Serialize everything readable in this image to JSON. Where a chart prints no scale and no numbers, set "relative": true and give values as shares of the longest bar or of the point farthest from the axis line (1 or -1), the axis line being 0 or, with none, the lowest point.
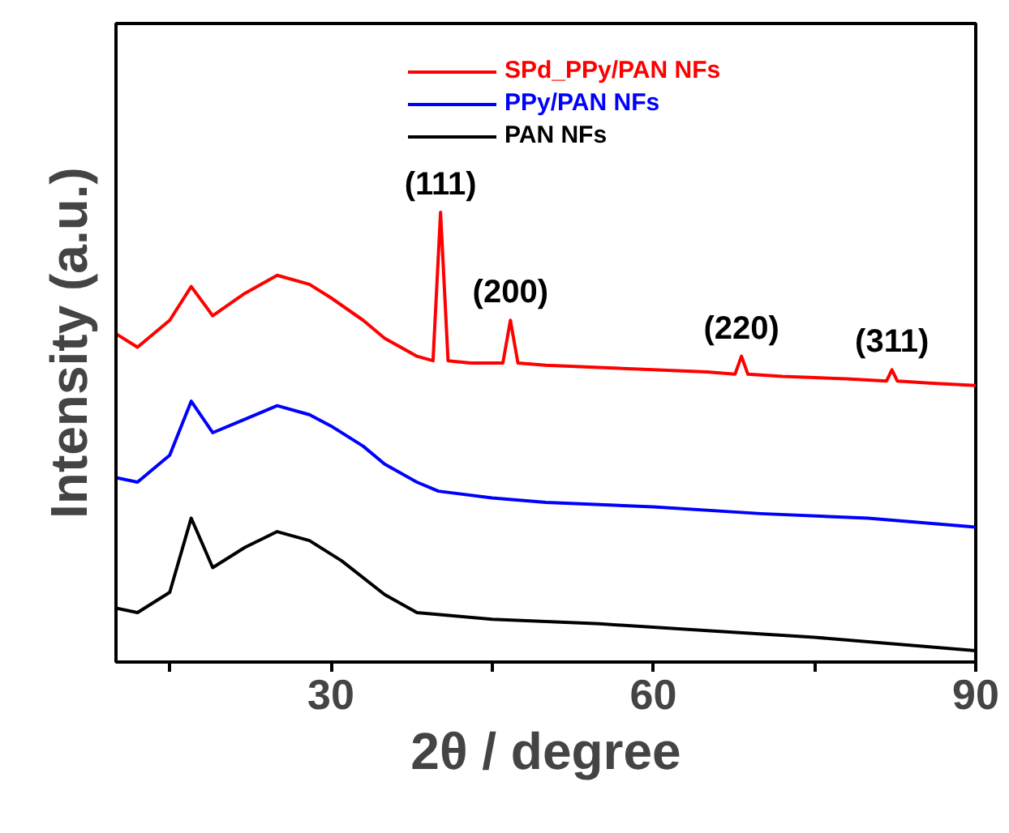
{
  "chart_data": {
    "type": "line",
    "relative": true,
    "xlabel": "2θ / degree",
    "ylabel": "Intensity (a.u.)",
    "xlim": [
      10,
      90
    ],
    "xticks": [
      {
        "value": 15,
        "label": null
      },
      30,
      {
        "value": 45,
        "label": null
      },
      60,
      {
        "value": 75,
        "label": null
      },
      90
    ],
    "legend": "top right",
    "grid": false,
    "series": [
      {
        "name": "SPd_PPy/PAN NFs",
        "color": "#ff0000",
        "x": [
          10,
          12,
          15,
          17,
          19,
          22,
          25,
          28,
          30,
          33,
          35,
          38,
          39.5,
          40.2,
          40.9,
          43,
          46,
          46.7,
          47.4,
          50,
          55,
          60,
          65,
          67.6,
          68.2,
          68.8,
          72,
          78,
          81.7,
          82.2,
          82.7,
          86,
          90
        ],
        "values": [
          0.73,
          0.7,
          0.76,
          0.835,
          0.77,
          0.82,
          0.86,
          0.84,
          0.81,
          0.76,
          0.72,
          0.68,
          0.67,
          1.0,
          0.67,
          0.665,
          0.665,
          0.76,
          0.665,
          0.66,
          0.655,
          0.65,
          0.645,
          0.64,
          0.68,
          0.64,
          0.635,
          0.63,
          0.625,
          0.65,
          0.625,
          0.62,
          0.615
        ]
      },
      {
        "name": "PPy/PAN NFs",
        "color": "#0000ff",
        "x": [
          10,
          12,
          15,
          17,
          19,
          22,
          25,
          28,
          30,
          33,
          35,
          38,
          40,
          45,
          50,
          60,
          70,
          80,
          90
        ],
        "values": [
          0.41,
          0.4,
          0.46,
          0.58,
          0.51,
          0.54,
          0.57,
          0.55,
          0.525,
          0.48,
          0.44,
          0.4,
          0.38,
          0.365,
          0.355,
          0.345,
          0.33,
          0.32,
          0.3
        ]
      },
      {
        "name": "PAN NFs",
        "color": "#000000",
        "x": [
          10,
          12,
          15,
          17,
          19,
          22,
          25,
          28,
          31,
          35,
          38,
          45,
          55,
          65,
          75,
          85,
          90
        ],
        "values": [
          0.12,
          0.11,
          0.155,
          0.32,
          0.21,
          0.255,
          0.29,
          0.27,
          0.225,
          0.15,
          0.11,
          0.095,
          0.085,
          0.07,
          0.055,
          0.035,
          0.025
        ]
      }
    ],
    "annotations": [
      {
        "text": "(111)",
        "x": 40.2,
        "y": 1.0
      },
      {
        "text": "(200)",
        "x": 46.7,
        "y": 0.76
      },
      {
        "text": "(220)",
        "x": 68.2,
        "y": 0.68
      },
      {
        "text": "(311)",
        "x": 82.2,
        "y": 0.65
      }
    ]
  }
}
